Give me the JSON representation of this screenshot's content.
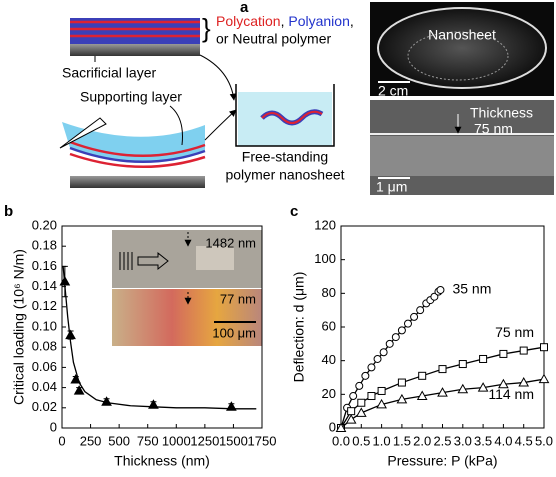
{
  "figure": {
    "panel_labels": [
      "a",
      "b",
      "c"
    ],
    "panel_a": {
      "polycation": "Polycation",
      "polyanion": "Polyanion",
      "comma": ",",
      "neutral": "or Neutral polymer",
      "sacrificial": "Sacrificial layer",
      "supporting": "Supporting layer",
      "result": [
        "Free-standing",
        "polymer nanosheet"
      ],
      "photo_label": "Nanosheet",
      "photo_scale": "2 cm",
      "sem_thickness": [
        "Thickness",
        "75 nm"
      ],
      "sem_scale": "1 μm"
    }
  },
  "chart_data": [
    {
      "type": "scatter",
      "xlabel": "Thickness (nm)",
      "ylabel": "Critical loading (10⁶ N/m)",
      "xlim": [
        0,
        1750
      ],
      "xticks": [
        0,
        250,
        500,
        750,
        1000,
        1250,
        1500,
        1750
      ],
      "ylim": [
        0,
        0.2
      ],
      "yticks": [
        0,
        0.02,
        0.04,
        0.06,
        0.08,
        {
          "value": 0.1,
          "label": "0.10"
        },
        0.12,
        0.14,
        0.16,
        0.18,
        {
          "value": 0.2,
          "label": "0.20"
        }
      ],
      "annotations": [
        "1482 nm",
        "77 nm",
        "100 μm"
      ],
      "series": [
        {
          "color": "#000000",
          "marker": "triangle-filled",
          "line": false,
          "x": [
            25,
            75,
            120,
            150,
            390,
            800,
            1482
          ],
          "values": [
            0.145,
            0.092,
            0.048,
            0.037,
            0.026,
            0.023,
            0.021
          ],
          "errors": [
            0.015,
            0.004,
            0.003,
            0.003,
            0.003,
            0.003,
            0.003
          ]
        },
        {
          "color": "#000000",
          "marker": "none",
          "line": true,
          "x": [
            10,
            30,
            50,
            75,
            100,
            150,
            200,
            300,
            400,
            600,
            800,
            1000,
            1250,
            1500,
            1700
          ],
          "values": [
            0.16,
            0.135,
            0.11,
            0.085,
            0.065,
            0.045,
            0.036,
            0.028,
            0.025,
            0.022,
            0.021,
            0.02,
            0.02,
            0.019,
            0.019
          ]
        }
      ]
    },
    {
      "type": "scatter",
      "xlabel": "Pressure: P (kPa)",
      "ylabel": "Deflection: d (μm)",
      "xlim": [
        0,
        5
      ],
      "xticks": [
        {
          "value": 0,
          "label": "0.0"
        },
        0.5,
        {
          "value": 1,
          "label": "1.0"
        },
        1.5,
        {
          "value": 2,
          "label": "2.0"
        },
        2.5,
        {
          "value": 3,
          "label": "3.0"
        },
        3.5,
        {
          "value": 4,
          "label": "4.0"
        },
        4.5,
        {
          "value": 5,
          "label": "5.0"
        }
      ],
      "ylim": [
        0,
        120
      ],
      "yticks": [
        0,
        20,
        40,
        60,
        80,
        100,
        120
      ],
      "series": [
        {
          "name": "35 nm",
          "color": "#000000",
          "marker": "circle",
          "line": true,
          "x": [
            0,
            0.15,
            0.3,
            0.45,
            0.6,
            0.75,
            0.9,
            1.05,
            1.2,
            1.35,
            1.5,
            1.65,
            1.8,
            1.95,
            2.1,
            2.2,
            2.3,
            2.4,
            2.45
          ],
          "values": [
            0,
            12,
            19,
            25,
            31,
            36,
            41,
            45,
            50,
            54,
            58,
            62,
            66,
            70,
            74,
            76,
            78,
            81,
            82
          ]
        },
        {
          "name": "75 nm",
          "color": "#000000",
          "marker": "square",
          "line": true,
          "x": [
            0,
            0.25,
            0.5,
            0.75,
            1,
            1.5,
            2,
            2.5,
            3,
            3.5,
            4,
            4.5,
            5
          ],
          "values": [
            0,
            10,
            15,
            19,
            22,
            27,
            31,
            35,
            38,
            41,
            44,
            46,
            48
          ]
        },
        {
          "name": "114 nm",
          "color": "#000000",
          "marker": "triangle",
          "line": true,
          "x": [
            0,
            0.25,
            0.5,
            1,
            1.5,
            2,
            2.5,
            3,
            3.5,
            4,
            4.5,
            5
          ],
          "values": [
            0,
            5,
            9,
            14,
            17,
            19,
            21,
            23,
            24,
            26,
            27,
            29
          ]
        }
      ]
    }
  ]
}
